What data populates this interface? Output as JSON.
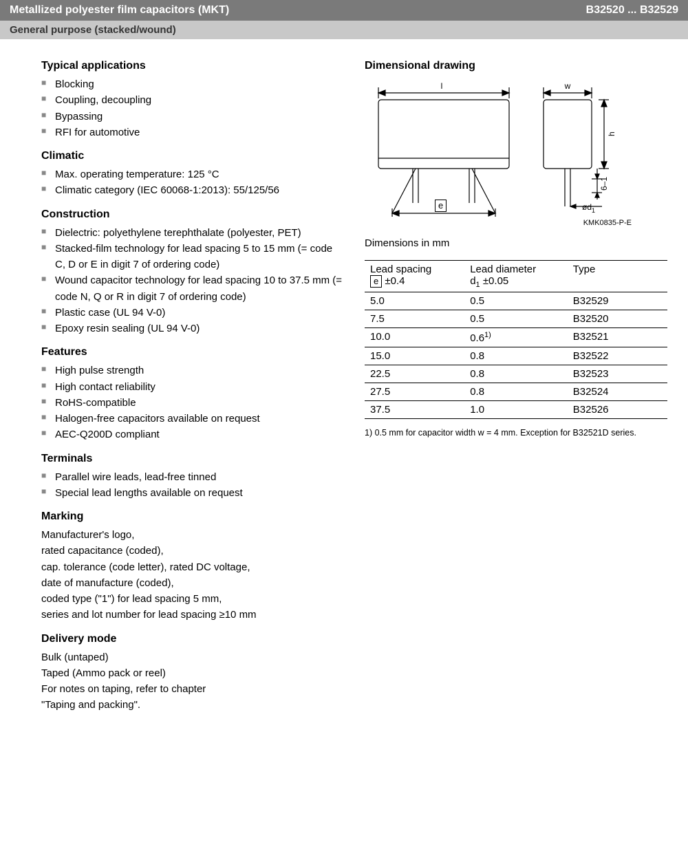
{
  "header": {
    "title": "Metallized polyester film capacitors (MKT)",
    "code": "B32520 ... B32529",
    "subtitle": "General purpose (stacked/wound)"
  },
  "left": {
    "apps_h": "Typical applications",
    "apps": [
      "Blocking",
      "Coupling, decoupling",
      "Bypassing",
      "RFI for automotive"
    ],
    "climatic_h": "Climatic",
    "climatic": [
      "Max. operating temperature: 125 °C",
      "Climatic category (IEC 60068-1:2013): 55/125/56"
    ],
    "construction_h": "Construction",
    "construction": [
      "Dielectric: polyethylene terephthalate (polyester, PET)",
      "Stacked-film technology for lead spacing 5 to 15 mm (= code C, D or E in digit 7 of ordering code)",
      "Wound capacitor technology for lead spacing 10 to 37.5 mm (= code N, Q or R in digit 7 of ordering code)",
      "Plastic case (UL 94 V-0)",
      "Epoxy resin sealing (UL 94 V-0)"
    ],
    "features_h": "Features",
    "features": [
      "High pulse strength",
      "High contact reliability",
      "RoHS-compatible",
      "Halogen-free capacitors available on request",
      "AEC-Q200D compliant"
    ],
    "terminals_h": "Terminals",
    "terminals": [
      "Parallel wire leads, lead-free tinned",
      "Special lead lengths available on request"
    ],
    "marking_h": "Marking",
    "marking": "Manufacturer's logo,\nrated capacitance (coded),\ncap. tolerance (code letter), rated DC voltage,\ndate of manufacture (coded),\ncoded type (\"1\") for lead spacing 5 mm,\nseries and lot number for lead spacing ≥10 mm",
    "delivery_h": "Delivery mode",
    "delivery": "Bulk (untaped)\nTaped (Ammo pack or reel)\nFor notes on taping, refer to chapter\n\"Taping and packing\"."
  },
  "right": {
    "drawing_h": "Dimensional drawing",
    "drawing_code": "KMK0835-P-E",
    "drawing_caption": "Dimensions in mm",
    "drawing_labels": {
      "l": "l",
      "w": "w",
      "h": "h",
      "e": "e",
      "d1": "ød",
      "d1_sub": "1",
      "six": "6–1"
    },
    "table": {
      "head": {
        "c1a": "Lead spacing",
        "c1b_pre": "e",
        "c1b": " ±0.4",
        "c2a": "Lead diameter",
        "c2b_pre": "d",
        "c2b_sub": "1",
        "c2b": " ±0.05",
        "c3a": "Type"
      },
      "rows": [
        {
          "e": "5.0",
          "d": "0.5",
          "sup": "",
          "type": "B32529"
        },
        {
          "e": "7.5",
          "d": "0.5",
          "sup": "",
          "type": "B32520"
        },
        {
          "e": "10.0",
          "d": "0.6",
          "sup": "1)",
          "type": "B32521"
        },
        {
          "e": "15.0",
          "d": "0.8",
          "sup": "",
          "type": "B32522"
        },
        {
          "e": "22.5",
          "d": "0.8",
          "sup": "",
          "type": "B32523"
        },
        {
          "e": "27.5",
          "d": "0.8",
          "sup": "",
          "type": "B32524"
        },
        {
          "e": "37.5",
          "d": "1.0",
          "sup": "",
          "type": "B32526"
        }
      ]
    },
    "footnote": "1)  0.5 mm for capacitor width w = 4 mm. Exception for B32521D series."
  },
  "colors": {
    "hdr1_bg": "#7a7a7a",
    "hdr2_bg": "#c8c8c8",
    "bullet": "#888888"
  }
}
